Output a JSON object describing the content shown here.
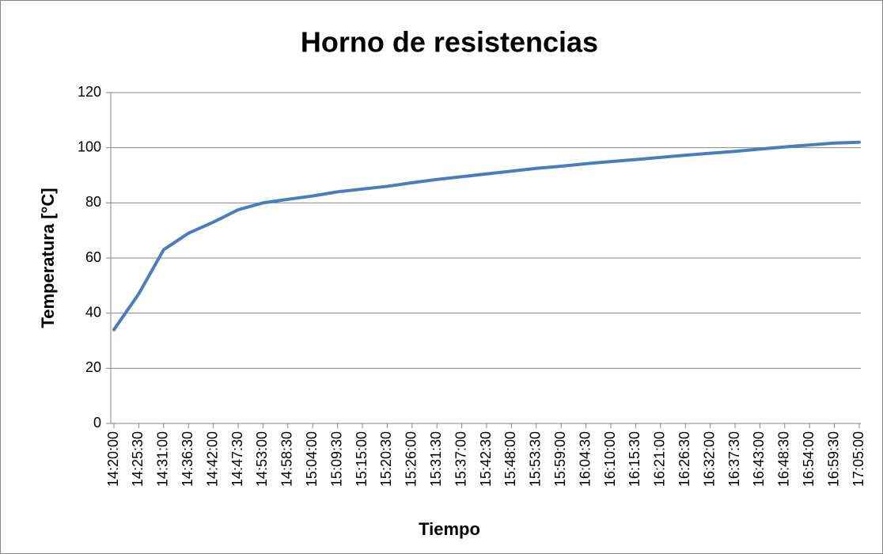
{
  "chart_data": {
    "type": "line",
    "title": "Horno de resistencias",
    "x_label": "Tiempo",
    "y_label": "Temperatura [°C]",
    "categories": [
      "14:20:00",
      "14:25:30",
      "14:31:00",
      "14:36:30",
      "14:42:00",
      "14:47:30",
      "14:53:00",
      "14:58:30",
      "15:04:00",
      "15:09:30",
      "15:15:00",
      "15:20:30",
      "15:26:00",
      "15:31:30",
      "15:37:00",
      "15:42:30",
      "15:48:00",
      "15:53:30",
      "15:59:00",
      "16:04:30",
      "16:10:00",
      "16:15:30",
      "16:21:00",
      "16:26:30",
      "16:32:00",
      "16:37:30",
      "16:43:00",
      "16:48:30",
      "16:54:00",
      "16:59:30",
      "17:05:00"
    ],
    "series": [
      {
        "name": "Temperatura",
        "color": "#4a7ebb",
        "values": [
          34,
          47,
          63,
          69,
          73,
          77.5,
          80,
          81.3,
          82.5,
          84,
          85,
          86,
          87.3,
          88.5,
          89.5,
          90.5,
          91.5,
          92.5,
          93.3,
          94.2,
          95,
          95.7,
          96.5,
          97.3,
          98,
          98.7,
          99.5,
          100.3,
          101,
          101.7,
          102
        ]
      }
    ],
    "ylim": [
      0,
      120
    ],
    "yticks": [
      0,
      20,
      40,
      60,
      80,
      100,
      120
    ],
    "grid": true
  }
}
